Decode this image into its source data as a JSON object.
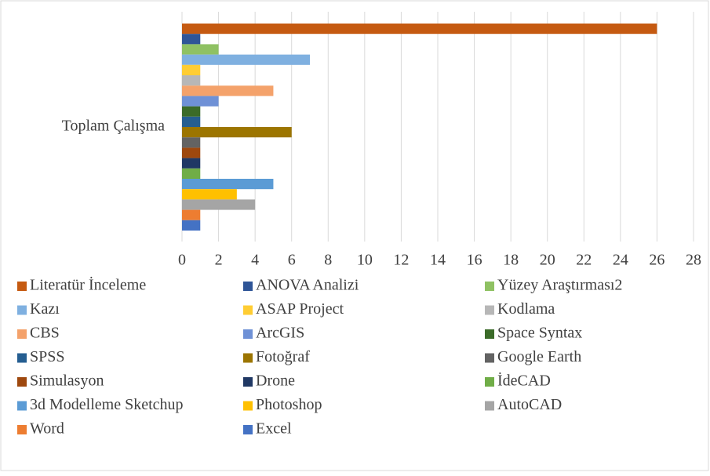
{
  "chart_data": {
    "type": "bar",
    "orientation": "horizontal",
    "categories": [
      "Toplam Çalışma"
    ],
    "series": [
      {
        "name": "Literatür İnceleme",
        "color": "#c55a11",
        "values": [
          26
        ]
      },
      {
        "name": "ANOVA Analizi",
        "color": "#2f5597",
        "values": [
          1
        ]
      },
      {
        "name": "Yüzey Araştırması2",
        "color": "#8fc163",
        "values": [
          2
        ]
      },
      {
        "name": "Kazı",
        "color": "#7fb0e0",
        "values": [
          7
        ]
      },
      {
        "name": "ASAP Project",
        "color": "#ffcd33",
        "values": [
          1
        ]
      },
      {
        "name": "Kodlama",
        "color": "#b7b7b7",
        "values": [
          1
        ]
      },
      {
        "name": "CBS",
        "color": "#f4a26b",
        "values": [
          5
        ]
      },
      {
        "name": "ArcGIS",
        "color": "#6f91d6",
        "values": [
          2
        ]
      },
      {
        "name": "Space Syntax",
        "color": "#3b6b29",
        "values": [
          1
        ]
      },
      {
        "name": "SPSS",
        "color": "#255e91",
        "values": [
          1
        ]
      },
      {
        "name": "Fotoğraf",
        "color": "#9c7500",
        "values": [
          6
        ]
      },
      {
        "name": "Google Earth",
        "color": "#636363",
        "values": [
          1
        ]
      },
      {
        "name": "Simulasyon",
        "color": "#9e480e",
        "values": [
          1
        ]
      },
      {
        "name": "Drone",
        "color": "#203864",
        "values": [
          1
        ]
      },
      {
        "name": "İdeCAD",
        "color": "#70ad47",
        "values": [
          1
        ]
      },
      {
        "name": "3d Modelleme Sketchup",
        "color": "#5b9bd5",
        "values": [
          5
        ]
      },
      {
        "name": "Photoshop",
        "color": "#ffc000",
        "values": [
          3
        ]
      },
      {
        "name": "AutoCAD",
        "color": "#a5a5a5",
        "values": [
          4
        ]
      },
      {
        "name": "Word",
        "color": "#ed7d31",
        "values": [
          1
        ]
      },
      {
        "name": "Excel",
        "color": "#4472c4",
        "values": [
          1
        ]
      }
    ],
    "xlim": [
      0,
      28
    ],
    "xticks": [
      0,
      2,
      4,
      6,
      8,
      10,
      12,
      14,
      16,
      18,
      20,
      22,
      24,
      26,
      28
    ],
    "grid": true,
    "legend": "bottom"
  }
}
